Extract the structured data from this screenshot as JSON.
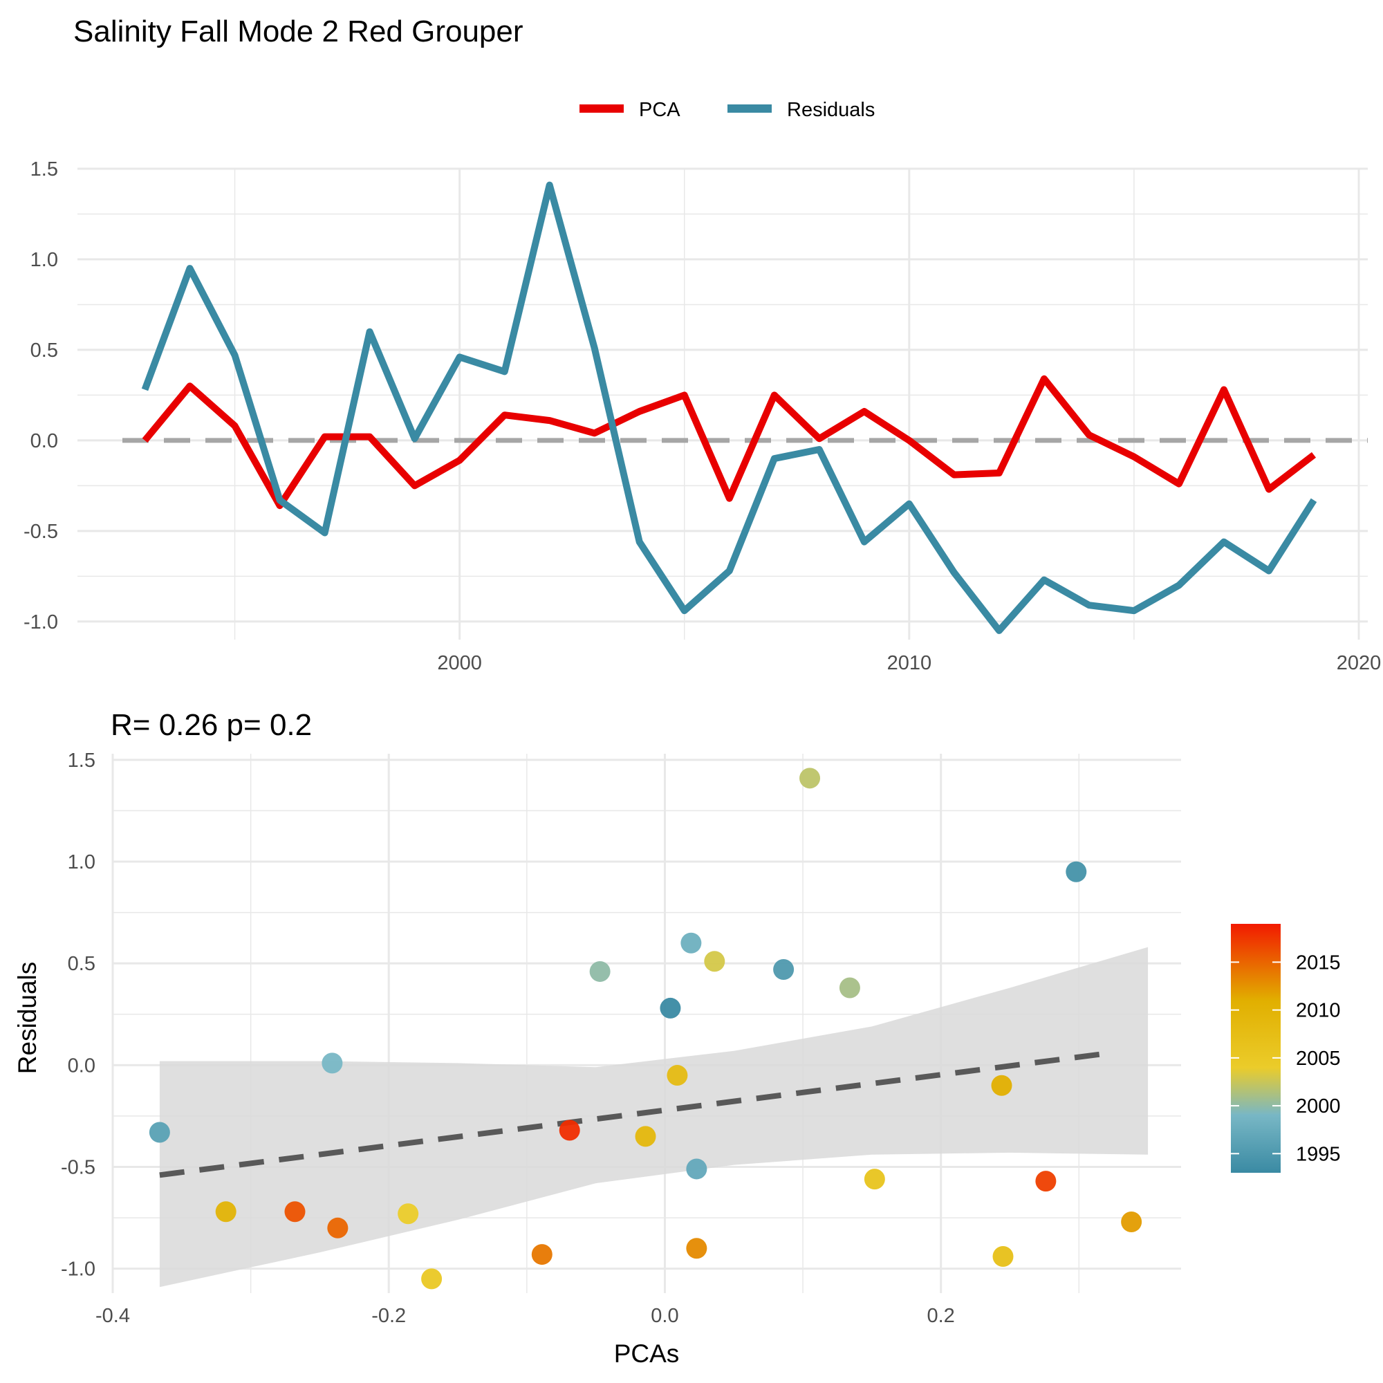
{
  "page": {
    "title": "Salinity Fall Mode 2 Red Grouper"
  },
  "colors": {
    "pca": "#e80000",
    "residuals": "#3a8aa3",
    "zero_line": "#a6a6a6",
    "fit_line": "#595959",
    "ribbon": "#d9d9d9",
    "grid": "#e8e8e8"
  },
  "chart_data": [
    {
      "id": "timeseries",
      "type": "line",
      "title": "",
      "xlabel": "",
      "ylabel": "",
      "legend_position": "top",
      "grid": true,
      "xlim": [
        1991.5,
        2020.2
      ],
      "ylim": [
        -1.1,
        1.5
      ],
      "x_ticks": [
        2000,
        2010,
        2020
      ],
      "x_tick_labels": [
        "2000",
        "2010",
        "2020"
      ],
      "y_ticks": [
        -1.0,
        -0.5,
        0.0,
        0.5,
        1.0,
        1.5
      ],
      "y_tick_labels": [
        "-1.0",
        "-0.5",
        "0.0",
        "0.5",
        "1.0",
        "1.5"
      ],
      "reference_line": {
        "y": 0,
        "style": "dashed"
      },
      "x": [
        1993,
        1994,
        1995,
        1996,
        1997,
        1998,
        1999,
        2000,
        2001,
        2002,
        2003,
        2004,
        2005,
        2006,
        2007,
        2008,
        2009,
        2010,
        2011,
        2012,
        2013,
        2014,
        2015,
        2016,
        2017,
        2018,
        2019
      ],
      "series": [
        {
          "name": "PCA",
          "color": "#e80000",
          "values": [
            0.0,
            0.3,
            0.08,
            -0.36,
            0.02,
            0.02,
            -0.25,
            -0.11,
            0.14,
            0.11,
            0.04,
            0.16,
            0.25,
            -0.32,
            0.25,
            0.01,
            0.16,
            0.0,
            -0.19,
            -0.18,
            0.34,
            0.03,
            -0.09,
            -0.24,
            0.28,
            -0.27,
            -0.08
          ]
        },
        {
          "name": "Residuals",
          "color": "#3a8aa3",
          "values": [
            0.28,
            0.95,
            0.47,
            -0.33,
            -0.51,
            0.6,
            0.01,
            0.46,
            0.38,
            1.41,
            0.51,
            -0.56,
            -0.94,
            -0.72,
            -0.1,
            -0.05,
            -0.56,
            -0.35,
            -0.73,
            -1.05,
            -0.77,
            -0.91,
            -0.94,
            -0.8,
            -0.56,
            -0.72,
            -0.33
          ]
        }
      ]
    },
    {
      "id": "scatter",
      "type": "scatter",
      "title": "R= 0.26  p= 0.2",
      "xlabel": "PCAs",
      "ylabel": "Residuals",
      "grid": true,
      "xlim": [
        -0.4,
        0.374
      ],
      "ylim": [
        -1.12,
        1.53
      ],
      "x_ticks": [
        -0.4,
        -0.2,
        0.0,
        0.2
      ],
      "x_tick_labels": [
        "-0.4",
        "-0.2",
        "0.0",
        "0.2"
      ],
      "y_ticks": [
        -1.0,
        -0.5,
        0.0,
        0.5,
        1.0,
        1.5
      ],
      "y_tick_labels": [
        "-1.0",
        "-0.5",
        "0.0",
        "0.5",
        "1.0",
        "1.5"
      ],
      "points": [
        {
          "year": 1993,
          "x": 0.004,
          "y": 0.28
        },
        {
          "year": 1994,
          "x": 0.298,
          "y": 0.95
        },
        {
          "year": 1995,
          "x": 0.086,
          "y": 0.47
        },
        {
          "year": 1996,
          "x": -0.366,
          "y": -0.33
        },
        {
          "year": 1997,
          "x": 0.023,
          "y": -0.51
        },
        {
          "year": 1998,
          "x": 0.019,
          "y": 0.6
        },
        {
          "year": 1999,
          "x": -0.241,
          "y": 0.01
        },
        {
          "year": 2000,
          "x": -0.047,
          "y": 0.46
        },
        {
          "year": 2001,
          "x": 0.134,
          "y": 0.38
        },
        {
          "year": 2002,
          "x": 0.105,
          "y": 1.41
        },
        {
          "year": 2003,
          "x": 0.036,
          "y": 0.51
        },
        {
          "year": 2004,
          "x": -0.186,
          "y": -0.73
        },
        {
          "year": 2005,
          "x": -0.169,
          "y": -1.05
        },
        {
          "year": 2006,
          "x": 0.152,
          "y": -0.56
        },
        {
          "year": 2007,
          "x": 0.245,
          "y": -0.94
        },
        {
          "year": 2008,
          "x": 0.009,
          "y": -0.05
        },
        {
          "year": 2009,
          "x": -0.014,
          "y": -0.35
        },
        {
          "year": 2010,
          "x": -0.318,
          "y": -0.72
        },
        {
          "year": 2011,
          "x": 0.244,
          "y": -0.1
        },
        {
          "year": 2012,
          "x": 0.338,
          "y": -0.77
        },
        {
          "year": 2013,
          "x": 0.023,
          "y": -0.9
        },
        {
          "year": 2014,
          "x": -0.089,
          "y": -0.93
        },
        {
          "year": 2015,
          "x": -0.237,
          "y": -0.8
        },
        {
          "year": 2016,
          "x": -0.268,
          "y": -0.72
        },
        {
          "year": 2017,
          "x": 0.276,
          "y": -0.57
        },
        {
          "year": 2018,
          "x": -0.069,
          "y": -0.32
        }
      ],
      "fit": {
        "style": "dashed",
        "x": [
          -0.366,
          0.323
        ],
        "y": [
          -0.54,
          0.06
        ],
        "band_x": [
          -0.366,
          -0.25,
          -0.15,
          -0.05,
          0.05,
          0.15,
          0.25,
          0.35
        ],
        "band_lower": [
          -1.09,
          -0.92,
          -0.76,
          -0.58,
          -0.49,
          -0.44,
          -0.43,
          -0.44
        ],
        "band_upper": [
          0.02,
          0.02,
          0.01,
          -0.01,
          0.07,
          0.19,
          0.38,
          0.58
        ]
      },
      "colorbar": {
        "range": [
          1993,
          2019
        ],
        "ticks": [
          1995,
          2000,
          2005,
          2010,
          2015
        ],
        "tick_labels": [
          "1995",
          "2000",
          "2005",
          "2010",
          "2015"
        ],
        "stops": [
          {
            "value": 1993,
            "color": "#3a8aa3"
          },
          {
            "value": 1999,
            "color": "#78b7c5"
          },
          {
            "value": 2004,
            "color": "#ebcc2a"
          },
          {
            "value": 2011,
            "color": "#e1af00"
          },
          {
            "value": 2019,
            "color": "#f21a00"
          }
        ]
      }
    }
  ]
}
